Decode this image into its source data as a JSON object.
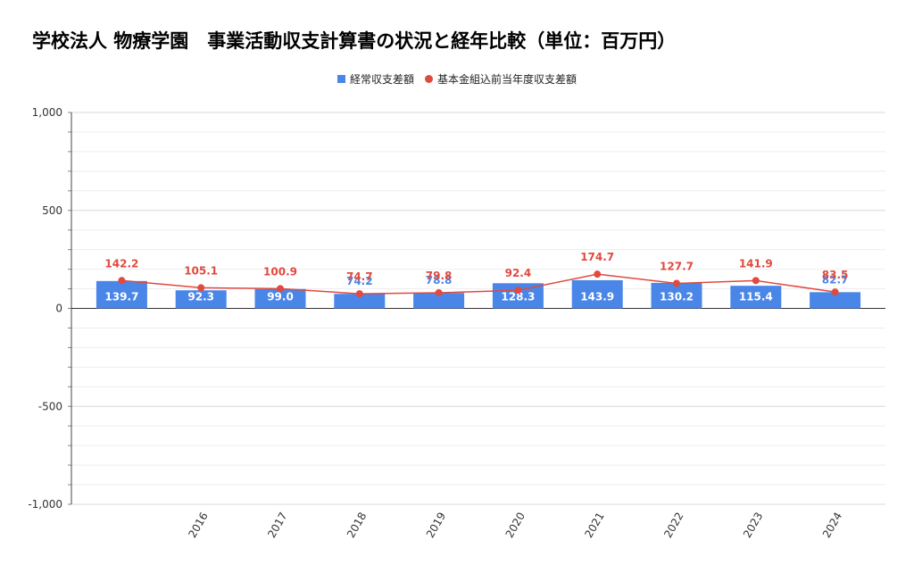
{
  "chart_data": {
    "type": "bar",
    "title": "学校法人 物療学園　事業活動収支計算書の状況と経年比較（単位：百万円）",
    "categories": [
      "",
      "2016",
      "2017",
      "2018",
      "2019",
      "2020",
      "2021",
      "2022",
      "2023",
      "2024"
    ],
    "series": [
      {
        "name": "経常収支差額",
        "kind": "bar",
        "color": "#4a86e8",
        "values": [
          139.7,
          92.3,
          99.0,
          74.2,
          78.8,
          128.3,
          143.9,
          130.2,
          115.4,
          82.7
        ],
        "labels": [
          "139.7",
          "92.3",
          "99.0",
          "74.2",
          "78.8",
          "128.3",
          "143.9",
          "130.2",
          "115.4",
          "82.7"
        ]
      },
      {
        "name": "基本金組込前当年度収支差額",
        "kind": "line",
        "color": "#e04a3f",
        "values": [
          142.2,
          105.1,
          100.9,
          74.7,
          79.8,
          92.4,
          174.7,
          127.7,
          141.9,
          83.5
        ],
        "labels": [
          "142.2",
          "105.1",
          "100.9",
          "74.7",
          "79.8",
          "92.4",
          "174.7",
          "127.7",
          "141.9",
          "83.5"
        ]
      }
    ],
    "ylim": [
      -1000,
      1000
    ],
    "yticks": [
      1000,
      500,
      0,
      -500,
      -1000
    ],
    "ytick_labels": [
      "1,000",
      "500",
      "0",
      "-500",
      "-1,000"
    ],
    "grid": true,
    "legend_position": "top-center"
  }
}
